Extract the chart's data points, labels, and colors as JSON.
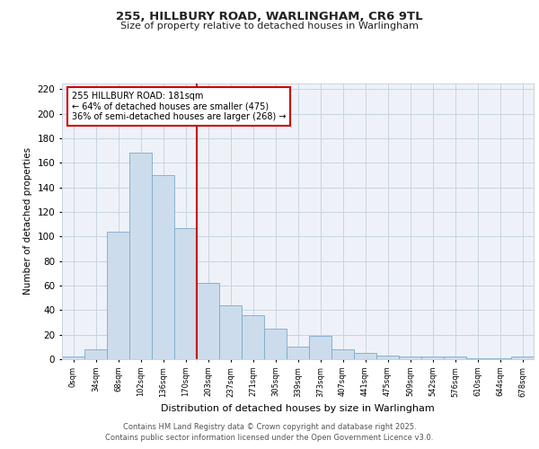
{
  "title1": "255, HILLBURY ROAD, WARLINGHAM, CR6 9TL",
  "title2": "Size of property relative to detached houses in Warlingham",
  "xlabel": "Distribution of detached houses by size in Warlingham",
  "ylabel": "Number of detached properties",
  "bar_labels": [
    "0sqm",
    "34sqm",
    "68sqm",
    "102sqm",
    "136sqm",
    "170sqm",
    "203sqm",
    "237sqm",
    "271sqm",
    "305sqm",
    "339sqm",
    "373sqm",
    "407sqm",
    "441sqm",
    "475sqm",
    "509sqm",
    "542sqm",
    "576sqm",
    "610sqm",
    "644sqm",
    "678sqm"
  ],
  "bar_values": [
    2,
    8,
    104,
    168,
    150,
    107,
    62,
    44,
    36,
    25,
    10,
    19,
    8,
    5,
    3,
    2,
    2,
    2,
    1,
    1,
    2
  ],
  "bar_color": "#ccdcec",
  "bar_edge_color": "#7aaac8",
  "grid_color": "#c8d4e0",
  "background_color": "#eef2f8",
  "vline_color": "#cc0000",
  "annotation_text": "255 HILLBURY ROAD: 181sqm\n← 64% of detached houses are smaller (475)\n36% of semi-detached houses are larger (268) →",
  "annotation_box_color": "#ffffff",
  "annotation_box_edge": "#cc0000",
  "ylim": [
    0,
    225
  ],
  "yticks": [
    0,
    20,
    40,
    60,
    80,
    100,
    120,
    140,
    160,
    180,
    200,
    220
  ],
  "footer": "Contains HM Land Registry data © Crown copyright and database right 2025.\nContains public sector information licensed under the Open Government Licence v3.0."
}
